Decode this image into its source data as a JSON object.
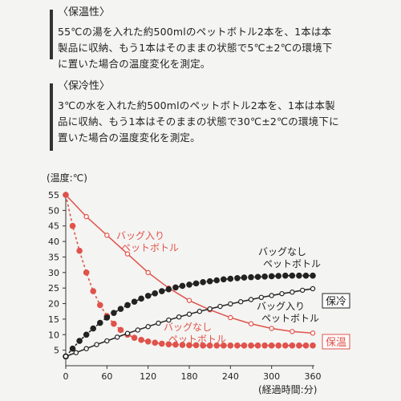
{
  "warm_section": {
    "title": "〈保温性〉",
    "lines": [
      "55℃の湯を入れた約500mlのペットボトル2本を、1本は本",
      "製品に収納、もう1本はそのままの状態で5℃±2℃の環境下",
      "に置いた場合の温度変化を測定。"
    ]
  },
  "cold_section": {
    "title": "〈保冷性〉",
    "lines": [
      "3℃の水を入れた約500mlのペットボトル2本を、1本は本製",
      "品に収納、もう1本はそのままの状態で30℃±2℃の環境下に",
      "置いた場合の温度変化を測定。"
    ]
  },
  "chart_data": {
    "type": "line",
    "ylabel": "(温度:℃)",
    "xlabel": "(経過時間:分)",
    "xlim": [
      0,
      360
    ],
    "ylim": [
      0,
      55
    ],
    "xticks": [
      "0",
      "60",
      "120",
      "180",
      "240",
      "300",
      "360"
    ],
    "yticks": [
      "5",
      "10",
      "15",
      "20",
      "25",
      "30",
      "35",
      "40",
      "45",
      "50",
      "55"
    ],
    "grid": false,
    "colors": {
      "warm": "#e0524a",
      "cold": "#222222"
    },
    "group_labels": {
      "cold": "保冷",
      "warm": "保温"
    },
    "series": [
      {
        "name": "バッグ入り ペットボトル",
        "group": "warm",
        "style": "solid",
        "x": [
          0,
          30,
          60,
          90,
          120,
          150,
          180,
          210,
          240,
          270,
          300,
          330,
          360
        ],
        "y": [
          55,
          48,
          42,
          36,
          30,
          25,
          21,
          18,
          15.5,
          13.5,
          12,
          11,
          10.5
        ]
      },
      {
        "name": "バッグなし ペットボトル",
        "group": "warm",
        "style": "dashed",
        "x": [
          0,
          10,
          20,
          30,
          40,
          50,
          60,
          70,
          80,
          90,
          100,
          110,
          120,
          130,
          140,
          150,
          160,
          170,
          180,
          190,
          200,
          210,
          220,
          230,
          240,
          250,
          260,
          270,
          280,
          290,
          300,
          310,
          320,
          330,
          340,
          350,
          360
        ],
        "y": [
          55,
          45,
          37,
          30,
          24,
          19.5,
          16,
          13.5,
          11.5,
          10,
          9,
          8.3,
          7.8,
          7.4,
          7.1,
          6.9,
          6.8,
          6.7,
          6.6,
          6.6,
          6.5,
          6.5,
          6.5,
          6.5,
          6.5,
          6.5,
          6.5,
          6.5,
          6.5,
          6.5,
          6.5,
          6.5,
          6.5,
          6.5,
          6.5,
          6.5,
          6.5
        ]
      },
      {
        "name": "バッグなし ペットボトル",
        "group": "cold",
        "style": "dashed",
        "x": [
          0,
          10,
          20,
          30,
          40,
          50,
          60,
          70,
          80,
          90,
          100,
          110,
          120,
          130,
          140,
          150,
          160,
          170,
          180,
          190,
          200,
          210,
          220,
          230,
          240,
          250,
          260,
          270,
          280,
          290,
          300,
          310,
          320,
          330,
          340,
          350,
          360
        ],
        "y": [
          3,
          5.5,
          8,
          10,
          12,
          13.8,
          15.5,
          17,
          18.3,
          19.5,
          20.6,
          21.6,
          22.5,
          23.3,
          24,
          24.6,
          25.2,
          25.7,
          26.1,
          26.5,
          26.9,
          27.2,
          27.5,
          27.8,
          28,
          28.2,
          28.4,
          28.5,
          28.6,
          28.7,
          28.8,
          28.9,
          29,
          29,
          29,
          29,
          29
        ]
      },
      {
        "name": "バッグ入り ペットボトル",
        "group": "cold",
        "style": "solid",
        "x": [
          0,
          15,
          30,
          45,
          60,
          75,
          90,
          105,
          120,
          135,
          150,
          165,
          180,
          195,
          210,
          225,
          240,
          255,
          270,
          285,
          300,
          315,
          330,
          345,
          360
        ],
        "y": [
          3,
          4.2,
          5.5,
          6.8,
          8,
          9.2,
          10.4,
          11.5,
          12.6,
          13.7,
          14.7,
          15.7,
          16.6,
          17.5,
          18.3,
          19.1,
          19.9,
          20.6,
          21.3,
          22,
          22.6,
          23.2,
          23.7,
          24.3,
          24.8
        ]
      }
    ]
  }
}
